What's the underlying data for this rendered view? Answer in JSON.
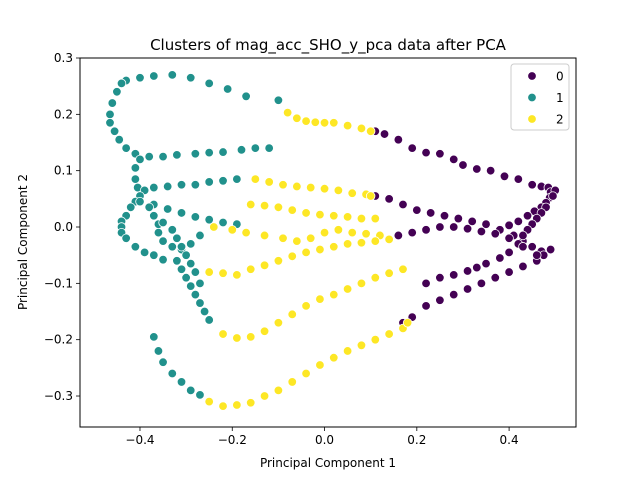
{
  "chart_data": {
    "type": "scatter",
    "title": "Clusters of mag_acc_SHO_y_pca data after PCA",
    "xlabel": "Principal Component 1",
    "ylabel": "Principal Component 2",
    "xlim": [
      -0.53,
      0.545
    ],
    "ylim": [
      -0.355,
      0.3
    ],
    "xticks": [
      -0.4,
      -0.2,
      0.0,
      0.2,
      0.4
    ],
    "xtick_labels": [
      "−0.4",
      "−0.2",
      "0.0",
      "0.2",
      "0.4"
    ],
    "yticks": [
      -0.3,
      -0.2,
      -0.1,
      0.0,
      0.1,
      0.2,
      0.3
    ],
    "ytick_labels": [
      "−0.3",
      "−0.2",
      "−0.1",
      "0.0",
      "0.1",
      "0.2",
      "0.3"
    ],
    "grid": false,
    "legend_position": "top-right",
    "series": [
      {
        "name": "0",
        "color": "#440154",
        "points": [
          [
            0.11,
            0.17
          ],
          [
            0.13,
            0.165
          ],
          [
            0.16,
            0.155
          ],
          [
            0.19,
            0.14
          ],
          [
            0.22,
            0.132
          ],
          [
            0.25,
            0.13
          ],
          [
            0.28,
            0.12
          ],
          [
            0.3,
            0.11
          ],
          [
            0.33,
            0.103
          ],
          [
            0.36,
            0.1
          ],
          [
            0.39,
            0.09
          ],
          [
            0.42,
            0.085
          ],
          [
            0.45,
            0.075
          ],
          [
            0.47,
            0.072
          ],
          [
            0.485,
            0.07
          ],
          [
            0.49,
            0.062
          ],
          [
            0.488,
            0.052
          ],
          [
            0.48,
            0.043
          ],
          [
            0.47,
            0.035
          ],
          [
            0.455,
            0.028
          ],
          [
            0.44,
            0.02
          ],
          [
            0.42,
            0.01
          ],
          [
            0.4,
            0.003
          ],
          [
            0.38,
            -0.005
          ],
          [
            0.11,
            0.055
          ],
          [
            0.14,
            0.05
          ],
          [
            0.17,
            0.04
          ],
          [
            0.2,
            0.03
          ],
          [
            0.23,
            0.025
          ],
          [
            0.26,
            0.02
          ],
          [
            0.29,
            0.015
          ],
          [
            0.32,
            0.01
          ],
          [
            0.35,
            0.005
          ],
          [
            0.38,
            -0.005
          ],
          [
            0.41,
            -0.015
          ],
          [
            0.43,
            -0.025
          ],
          [
            0.45,
            -0.035
          ],
          [
            0.47,
            -0.043
          ],
          [
            0.49,
            -0.04
          ],
          [
            0.475,
            -0.05
          ],
          [
            0.46,
            -0.06
          ],
          [
            0.43,
            -0.07
          ],
          [
            0.4,
            -0.08
          ],
          [
            0.37,
            -0.09
          ],
          [
            0.34,
            -0.1
          ],
          [
            0.31,
            -0.11
          ],
          [
            0.28,
            -0.12
          ],
          [
            0.25,
            -0.13
          ],
          [
            0.22,
            -0.14
          ],
          [
            0.19,
            -0.16
          ],
          [
            0.17,
            -0.17
          ],
          [
            0.5,
            0.065
          ],
          [
            0.495,
            0.055
          ],
          [
            0.48,
            0.035
          ],
          [
            0.47,
            0.025
          ],
          [
            0.46,
            0.015
          ],
          [
            0.45,
            0.005
          ],
          [
            0.44,
            -0.005
          ],
          [
            0.43,
            -0.015
          ],
          [
            0.42,
            -0.03
          ],
          [
            0.4,
            -0.045
          ],
          [
            0.38,
            -0.055
          ],
          [
            0.35,
            -0.065
          ],
          [
            0.33,
            -0.072
          ],
          [
            0.31,
            -0.078
          ],
          [
            0.28,
            -0.085
          ],
          [
            0.25,
            -0.09
          ],
          [
            0.22,
            -0.1
          ],
          [
            0.16,
            -0.015
          ],
          [
            0.19,
            -0.01
          ],
          [
            0.22,
            -0.005
          ],
          [
            0.25,
            0.0
          ],
          [
            0.28,
            0.0
          ],
          [
            0.31,
            -0.003
          ],
          [
            0.34,
            -0.008
          ],
          [
            0.37,
            -0.012
          ],
          [
            0.4,
            -0.02
          ],
          [
            0.43,
            -0.035
          ],
          [
            0.46,
            -0.05
          ]
        ]
      },
      {
        "name": "1",
        "color": "#21918c",
        "points": [
          [
            -0.43,
            0.26
          ],
          [
            -0.4,
            0.265
          ],
          [
            -0.37,
            0.268
          ],
          [
            -0.33,
            0.27
          ],
          [
            -0.29,
            0.265
          ],
          [
            -0.25,
            0.255
          ],
          [
            -0.21,
            0.245
          ],
          [
            -0.17,
            0.232
          ],
          [
            -0.1,
            0.225
          ],
          [
            -0.44,
            0.255
          ],
          [
            -0.45,
            0.24
          ],
          [
            -0.46,
            0.22
          ],
          [
            -0.465,
            0.2
          ],
          [
            -0.465,
            0.185
          ],
          [
            -0.455,
            0.17
          ],
          [
            -0.445,
            0.155
          ],
          [
            -0.43,
            0.14
          ],
          [
            -0.41,
            0.13
          ],
          [
            -0.38,
            0.125
          ],
          [
            -0.35,
            0.125
          ],
          [
            -0.32,
            0.128
          ],
          [
            -0.28,
            0.13
          ],
          [
            -0.25,
            0.132
          ],
          [
            -0.22,
            0.133
          ],
          [
            -0.18,
            0.137
          ],
          [
            -0.15,
            0.14
          ],
          [
            -0.12,
            0.14
          ],
          [
            -0.4,
            0.12
          ],
          [
            -0.41,
            0.105
          ],
          [
            -0.41,
            0.085
          ],
          [
            -0.405,
            0.07
          ],
          [
            -0.39,
            0.065
          ],
          [
            -0.37,
            0.07
          ],
          [
            -0.34,
            0.072
          ],
          [
            -0.31,
            0.075
          ],
          [
            -0.28,
            0.075
          ],
          [
            -0.25,
            0.08
          ],
          [
            -0.22,
            0.082
          ],
          [
            -0.19,
            0.085
          ],
          [
            -0.4,
            0.055
          ],
          [
            -0.41,
            0.045
          ],
          [
            -0.42,
            0.035
          ],
          [
            -0.43,
            0.02
          ],
          [
            -0.44,
            0.01
          ],
          [
            -0.44,
            0.0
          ],
          [
            -0.44,
            -0.01
          ],
          [
            -0.43,
            -0.02
          ],
          [
            -0.41,
            -0.035
          ],
          [
            -0.39,
            -0.045
          ],
          [
            -0.37,
            -0.05
          ],
          [
            -0.35,
            -0.058
          ],
          [
            -0.4,
            0.045
          ],
          [
            -0.37,
            0.04
          ],
          [
            -0.34,
            0.032
          ],
          [
            -0.31,
            0.025
          ],
          [
            -0.28,
            0.018
          ],
          [
            -0.25,
            0.013
          ],
          [
            -0.22,
            0.008
          ],
          [
            -0.19,
            0.005
          ],
          [
            -0.38,
            0.035
          ],
          [
            -0.37,
            0.02
          ],
          [
            -0.36,
            0.005
          ],
          [
            -0.36,
            -0.01
          ],
          [
            -0.35,
            -0.025
          ],
          [
            -0.33,
            -0.035
          ],
          [
            -0.31,
            -0.04
          ],
          [
            -0.29,
            -0.03
          ],
          [
            -0.27,
            -0.015
          ],
          [
            -0.35,
            0.008
          ],
          [
            -0.33,
            -0.005
          ],
          [
            -0.32,
            -0.02
          ],
          [
            -0.31,
            -0.035
          ],
          [
            -0.3,
            -0.05
          ],
          [
            -0.29,
            -0.065
          ],
          [
            -0.28,
            -0.08
          ],
          [
            -0.27,
            -0.1
          ],
          [
            -0.32,
            -0.06
          ],
          [
            -0.31,
            -0.075
          ],
          [
            -0.3,
            -0.09
          ],
          [
            -0.29,
            -0.105
          ],
          [
            -0.28,
            -0.12
          ],
          [
            -0.27,
            -0.135
          ],
          [
            -0.26,
            -0.15
          ],
          [
            -0.25,
            -0.165
          ],
          [
            -0.37,
            -0.195
          ],
          [
            -0.36,
            -0.22
          ],
          [
            -0.35,
            -0.24
          ],
          [
            -0.33,
            -0.26
          ],
          [
            -0.31,
            -0.275
          ],
          [
            -0.29,
            -0.29
          ],
          [
            -0.27,
            -0.298
          ]
        ]
      },
      {
        "name": "2",
        "color": "#fde725",
        "points": [
          [
            -0.08,
            0.203
          ],
          [
            -0.06,
            0.193
          ],
          [
            -0.04,
            0.188
          ],
          [
            -0.02,
            0.186
          ],
          [
            0.0,
            0.185
          ],
          [
            0.02,
            0.185
          ],
          [
            0.05,
            0.18
          ],
          [
            0.08,
            0.175
          ],
          [
            0.1,
            0.17
          ],
          [
            -0.15,
            0.085
          ],
          [
            -0.12,
            0.08
          ],
          [
            -0.09,
            0.075
          ],
          [
            -0.06,
            0.072
          ],
          [
            -0.03,
            0.07
          ],
          [
            0.0,
            0.068
          ],
          [
            0.03,
            0.065
          ],
          [
            0.06,
            0.06
          ],
          [
            0.09,
            0.058
          ],
          [
            0.1,
            0.055
          ],
          [
            -0.16,
            0.04
          ],
          [
            -0.13,
            0.038
          ],
          [
            -0.1,
            0.035
          ],
          [
            -0.07,
            0.03
          ],
          [
            -0.04,
            0.025
          ],
          [
            -0.01,
            0.022
          ],
          [
            0.02,
            0.02
          ],
          [
            0.05,
            0.018
          ],
          [
            0.08,
            0.015
          ],
          [
            0.11,
            0.015
          ],
          [
            -0.24,
            0.0
          ],
          [
            -0.2,
            -0.005
          ],
          [
            -0.17,
            -0.01
          ],
          [
            -0.13,
            -0.015
          ],
          [
            -0.09,
            -0.02
          ],
          [
            -0.06,
            -0.025
          ],
          [
            -0.03,
            -0.02
          ],
          [
            0.0,
            -0.01
          ],
          [
            0.03,
            -0.005
          ],
          [
            0.06,
            -0.01
          ],
          [
            0.09,
            -0.012
          ],
          [
            0.12,
            -0.015
          ],
          [
            -0.25,
            -0.08
          ],
          [
            -0.22,
            -0.082
          ],
          [
            -0.19,
            -0.085
          ],
          [
            -0.16,
            -0.075
          ],
          [
            -0.13,
            -0.068
          ],
          [
            -0.1,
            -0.06
          ],
          [
            -0.07,
            -0.052
          ],
          [
            -0.04,
            -0.045
          ],
          [
            -0.01,
            -0.04
          ],
          [
            0.02,
            -0.035
          ],
          [
            0.05,
            -0.03
          ],
          [
            0.08,
            -0.028
          ],
          [
            0.11,
            -0.025
          ],
          [
            0.14,
            -0.022
          ],
          [
            -0.22,
            -0.19
          ],
          [
            -0.19,
            -0.197
          ],
          [
            -0.16,
            -0.195
          ],
          [
            -0.13,
            -0.185
          ],
          [
            -0.1,
            -0.17
          ],
          [
            -0.07,
            -0.155
          ],
          [
            -0.04,
            -0.14
          ],
          [
            -0.01,
            -0.128
          ],
          [
            0.02,
            -0.12
          ],
          [
            0.05,
            -0.11
          ],
          [
            0.08,
            -0.1
          ],
          [
            0.11,
            -0.09
          ],
          [
            0.14,
            -0.082
          ],
          [
            0.17,
            -0.075
          ],
          [
            -0.25,
            -0.31
          ],
          [
            -0.22,
            -0.318
          ],
          [
            -0.19,
            -0.316
          ],
          [
            -0.16,
            -0.312
          ],
          [
            -0.13,
            -0.3
          ],
          [
            -0.1,
            -0.29
          ],
          [
            -0.07,
            -0.275
          ],
          [
            -0.04,
            -0.26
          ],
          [
            -0.01,
            -0.245
          ],
          [
            0.02,
            -0.232
          ],
          [
            0.05,
            -0.22
          ],
          [
            0.08,
            -0.21
          ],
          [
            0.11,
            -0.2
          ],
          [
            0.14,
            -0.19
          ],
          [
            0.17,
            -0.18
          ],
          [
            0.18,
            -0.17
          ]
        ]
      }
    ]
  }
}
